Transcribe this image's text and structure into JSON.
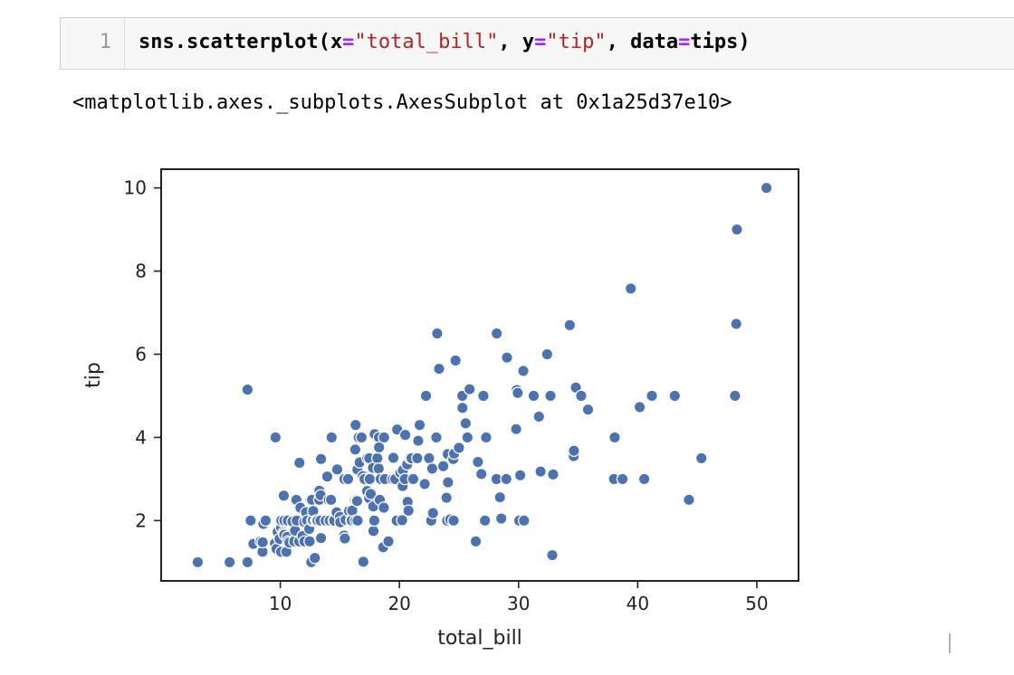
{
  "cell": {
    "line_number": "1",
    "code": {
      "fn": "sns.scatterplot(",
      "x_kw": "x",
      "eq": "=",
      "x_val": "\"total_bill\"",
      "sep1": ", ",
      "y_kw": "y",
      "y_val": "\"tip\"",
      "sep2": ", ",
      "data_kw": "data",
      "data_val": "tips)"
    }
  },
  "output_text": "<matplotlib.axes._subplots.AxesSubplot at 0x1a25d37e10>",
  "colors": {
    "marker": "#4c72b0",
    "string": "#ba2121",
    "operator": "#aa22ff"
  },
  "chart_data": {
    "type": "scatter",
    "title": "",
    "xlabel": "total_bill",
    "ylabel": "tip",
    "xlim": [
      0,
      53.5
    ],
    "ylim": [
      0.55,
      10.45
    ],
    "xticks": [
      10,
      20,
      30,
      40,
      50
    ],
    "yticks": [
      2,
      4,
      6,
      8,
      10
    ],
    "grid": false,
    "points": [
      [
        3.07,
        1.0
      ],
      [
        5.75,
        1.0
      ],
      [
        7.25,
        1.0
      ],
      [
        7.25,
        5.15
      ],
      [
        7.51,
        2.0
      ],
      [
        7.74,
        1.44
      ],
      [
        8.35,
        1.5
      ],
      [
        8.51,
        1.25
      ],
      [
        8.52,
        1.48
      ],
      [
        8.58,
        1.92
      ],
      [
        8.77,
        2.0
      ],
      [
        9.55,
        1.45
      ],
      [
        9.6,
        4.0
      ],
      [
        9.68,
        1.32
      ],
      [
        9.78,
        1.73
      ],
      [
        9.94,
        1.56
      ],
      [
        10.07,
        1.83
      ],
      [
        10.07,
        1.25
      ],
      [
        10.09,
        2.0
      ],
      [
        10.27,
        1.71
      ],
      [
        10.29,
        2.6
      ],
      [
        10.33,
        1.67
      ],
      [
        10.34,
        2.0
      ],
      [
        10.34,
        1.66
      ],
      [
        10.51,
        1.25
      ],
      [
        10.59,
        1.61
      ],
      [
        10.63,
        2.0
      ],
      [
        10.65,
        1.5
      ],
      [
        10.77,
        1.47
      ],
      [
        11.02,
        1.98
      ],
      [
        11.17,
        1.5
      ],
      [
        11.24,
        1.76
      ],
      [
        11.35,
        2.5
      ],
      [
        11.38,
        2.0
      ],
      [
        11.59,
        1.5
      ],
      [
        11.61,
        3.39
      ],
      [
        11.69,
        2.31
      ],
      [
        11.87,
        1.63
      ],
      [
        12.02,
        1.97
      ],
      [
        12.03,
        1.5
      ],
      [
        12.16,
        2.2
      ],
      [
        12.26,
        2.0
      ],
      [
        12.43,
        1.8
      ],
      [
        12.46,
        1.5
      ],
      [
        12.54,
        2.5
      ],
      [
        12.6,
        1.0
      ],
      [
        12.66,
        2.5
      ],
      [
        12.69,
        2.0
      ],
      [
        12.74,
        2.01
      ],
      [
        12.76,
        2.23
      ],
      [
        12.9,
        1.1
      ],
      [
        13.0,
        2.0
      ],
      [
        13.03,
        2.0
      ],
      [
        13.13,
        2.0
      ],
      [
        13.27,
        2.5
      ],
      [
        13.28,
        2.72
      ],
      [
        13.37,
        2.0
      ],
      [
        13.39,
        2.61
      ],
      [
        13.42,
        3.48
      ],
      [
        13.42,
        1.58
      ],
      [
        13.81,
        2.0
      ],
      [
        13.94,
        3.06
      ],
      [
        14.07,
        2.5
      ],
      [
        14.15,
        2.0
      ],
      [
        14.26,
        2.5
      ],
      [
        14.31,
        4.0
      ],
      [
        14.48,
        2.0
      ],
      [
        14.52,
        2.0
      ],
      [
        14.73,
        2.2
      ],
      [
        14.78,
        3.23
      ],
      [
        15.01,
        2.09
      ],
      [
        15.04,
        1.96
      ],
      [
        15.36,
        1.64
      ],
      [
        15.38,
        3.0
      ],
      [
        15.42,
        1.57
      ],
      [
        15.48,
        2.02
      ],
      [
        15.69,
        3.0
      ],
      [
        15.77,
        2.23
      ],
      [
        15.95,
        2.0
      ],
      [
        15.98,
        2.03
      ],
      [
        16.0,
        2.0
      ],
      [
        16.04,
        2.24
      ],
      [
        16.27,
        2.5
      ],
      [
        16.29,
        3.71
      ],
      [
        16.31,
        2.0
      ],
      [
        16.32,
        4.3
      ],
      [
        16.4,
        2.5
      ],
      [
        16.45,
        2.47
      ],
      [
        16.47,
        3.23
      ],
      [
        16.49,
        2.0
      ],
      [
        16.58,
        4.0
      ],
      [
        16.66,
        3.4
      ],
      [
        16.82,
        4.0
      ],
      [
        16.93,
        3.07
      ],
      [
        16.97,
        1.01
      ],
      [
        17.07,
        3.0
      ],
      [
        17.26,
        2.74
      ],
      [
        17.29,
        2.71
      ],
      [
        17.31,
        3.5
      ],
      [
        17.46,
        2.54
      ],
      [
        17.47,
        3.5
      ],
      [
        17.51,
        3.0
      ],
      [
        17.59,
        2.64
      ],
      [
        17.78,
        3.27
      ],
      [
        17.81,
        2.34
      ],
      [
        17.82,
        1.75
      ],
      [
        17.89,
        2.0
      ],
      [
        17.92,
        4.08
      ],
      [
        18.15,
        3.5
      ],
      [
        18.24,
        3.76
      ],
      [
        18.26,
        3.25
      ],
      [
        18.28,
        4.0
      ],
      [
        18.29,
        3.76
      ],
      [
        18.35,
        2.5
      ],
      [
        18.43,
        3.0
      ],
      [
        18.64,
        1.36
      ],
      [
        18.69,
        2.31
      ],
      [
        18.71,
        4.0
      ],
      [
        18.78,
        3.0
      ],
      [
        19.08,
        1.5
      ],
      [
        19.44,
        3.0
      ],
      [
        19.49,
        3.51
      ],
      [
        19.65,
        3.0
      ],
      [
        19.77,
        2.0
      ],
      [
        19.81,
        4.19
      ],
      [
        20.08,
        3.15
      ],
      [
        20.23,
        2.01
      ],
      [
        20.27,
        2.83
      ],
      [
        20.29,
        3.21
      ],
      [
        20.45,
        3.0
      ],
      [
        20.49,
        4.06
      ],
      [
        20.65,
        3.35
      ],
      [
        20.69,
        2.45
      ],
      [
        20.76,
        2.24
      ],
      [
        20.9,
        3.5
      ],
      [
        21.01,
        3.5
      ],
      [
        21.16,
        3.0
      ],
      [
        21.5,
        3.5
      ],
      [
        21.58,
        3.92
      ],
      [
        21.7,
        4.3
      ],
      [
        22.12,
        2.88
      ],
      [
        22.23,
        5.0
      ],
      [
        22.42,
        3.48
      ],
      [
        22.49,
        3.5
      ],
      [
        22.67,
        2.0
      ],
      [
        22.75,
        3.25
      ],
      [
        22.82,
        2.18
      ],
      [
        23.1,
        4.0
      ],
      [
        23.17,
        6.5
      ],
      [
        23.33,
        5.65
      ],
      [
        23.68,
        3.31
      ],
      [
        23.95,
        2.55
      ],
      [
        24.01,
        2.0
      ],
      [
        24.06,
        3.6
      ],
      [
        24.08,
        2.92
      ],
      [
        24.27,
        2.03
      ],
      [
        24.52,
        3.48
      ],
      [
        24.55,
        2.0
      ],
      [
        24.59,
        3.61
      ],
      [
        24.71,
        5.85
      ],
      [
        25.0,
        3.75
      ],
      [
        25.28,
        5.0
      ],
      [
        25.29,
        4.71
      ],
      [
        25.56,
        4.34
      ],
      [
        25.71,
        4.0
      ],
      [
        25.89,
        5.16
      ],
      [
        26.41,
        1.5
      ],
      [
        26.59,
        3.41
      ],
      [
        26.86,
        3.14
      ],
      [
        26.88,
        3.12
      ],
      [
        27.05,
        5.0
      ],
      [
        27.18,
        2.0
      ],
      [
        27.2,
        4.0
      ],
      [
        27.28,
        4.0
      ],
      [
        28.15,
        3.0
      ],
      [
        28.17,
        6.5
      ],
      [
        28.44,
        2.56
      ],
      [
        28.55,
        2.05
      ],
      [
        28.97,
        3.0
      ],
      [
        29.03,
        5.92
      ],
      [
        29.8,
        4.2
      ],
      [
        29.85,
        5.14
      ],
      [
        29.93,
        5.07
      ],
      [
        30.06,
        2.0
      ],
      [
        30.14,
        3.09
      ],
      [
        30.4,
        5.6
      ],
      [
        30.46,
        2.0
      ],
      [
        31.27,
        5.0
      ],
      [
        31.71,
        4.5
      ],
      [
        31.85,
        3.18
      ],
      [
        32.4,
        6.0
      ],
      [
        32.68,
        5.0
      ],
      [
        32.83,
        1.17
      ],
      [
        32.9,
        3.11
      ],
      [
        34.3,
        6.7
      ],
      [
        34.63,
        3.55
      ],
      [
        34.65,
        3.68
      ],
      [
        34.81,
        5.2
      ],
      [
        35.26,
        5.0
      ],
      [
        35.83,
        4.67
      ],
      [
        38.01,
        3.0
      ],
      [
        38.07,
        4.0
      ],
      [
        38.73,
        3.0
      ],
      [
        39.42,
        7.58
      ],
      [
        40.17,
        4.73
      ],
      [
        40.55,
        3.0
      ],
      [
        41.19,
        5.0
      ],
      [
        43.11,
        5.0
      ],
      [
        44.3,
        2.5
      ],
      [
        45.35,
        3.5
      ],
      [
        48.17,
        5.0
      ],
      [
        48.27,
        6.73
      ],
      [
        48.33,
        9.0
      ],
      [
        50.81,
        10.0
      ]
    ]
  }
}
